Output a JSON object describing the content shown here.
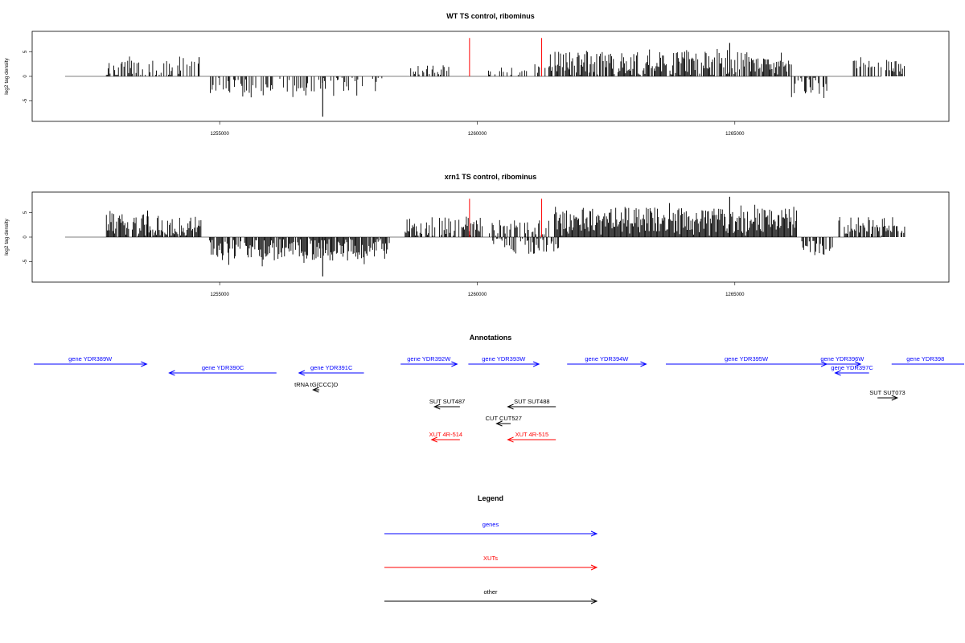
{
  "chart_data": [
    {
      "type": "bar",
      "title": "WT TS control, ribominus",
      "xlabel": "",
      "ylabel": "log2 tag density",
      "xlim": [
        1252000,
        1268500
      ],
      "ylim": [
        -8.5,
        8.5
      ],
      "yticks": [
        -5,
        0,
        5
      ],
      "xticks": [
        1255000,
        1260000,
        1265000
      ],
      "xtick_labels": [
        "1255000",
        "1260000",
        "1265000"
      ],
      "grid": false,
      "highlight_color": "#ff0000",
      "highlights": [
        {
          "x": 1259850,
          "y": 7.8
        },
        {
          "x": 1261250,
          "y": 7.8
        }
      ],
      "bar_color": "#000000",
      "regions": [
        {
          "start": 1252800,
          "end": 1254650,
          "sign": 1,
          "mean": 1.6,
          "spread": 1.8,
          "density": 0.55
        },
        {
          "start": 1254800,
          "end": 1257500,
          "sign": -1,
          "mean": 1.8,
          "spread": 1.6,
          "density": 0.45
        },
        {
          "start": 1257500,
          "end": 1258200,
          "sign": -1,
          "mean": 1.6,
          "spread": 1.5,
          "density": 0.35
        },
        {
          "start": 1258600,
          "end": 1259500,
          "sign": 1,
          "mean": 1.3,
          "spread": 1.0,
          "density": 0.35
        },
        {
          "start": 1260200,
          "end": 1261400,
          "sign": 1,
          "mean": 1.4,
          "spread": 1.4,
          "density": 0.25
        },
        {
          "start": 1261400,
          "end": 1266100,
          "sign": 1,
          "mean": 2.6,
          "spread": 2.4,
          "density": 0.8
        },
        {
          "start": 1266100,
          "end": 1266800,
          "sign": -1,
          "mean": 1.8,
          "spread": 1.8,
          "density": 0.6
        },
        {
          "start": 1267300,
          "end": 1268300,
          "sign": 1,
          "mean": 1.8,
          "spread": 1.6,
          "density": 0.6
        }
      ],
      "peaks": [
        {
          "x": 1257000,
          "y": -8.2
        },
        {
          "x": 1264900,
          "y": 6.8
        },
        {
          "x": 1254600,
          "y": 3.9
        }
      ]
    },
    {
      "type": "bar",
      "title": "xrn1 TS control, ribominus",
      "xlabel": "",
      "ylabel": "log2 tag density",
      "xlim": [
        1252000,
        1268500
      ],
      "ylim": [
        -8.5,
        8.5
      ],
      "yticks": [
        -5,
        0,
        5
      ],
      "xticks": [
        1255000,
        1260000,
        1265000
      ],
      "xtick_labels": [
        "1255000",
        "1260000",
        "1265000"
      ],
      "grid": false,
      "highlight_color": "#ff0000",
      "highlights": [
        {
          "x": 1259850,
          "y": 7.8
        },
        {
          "x": 1261250,
          "y": 7.8
        }
      ],
      "bar_color": "#000000",
      "regions": [
        {
          "start": 1252800,
          "end": 1254650,
          "sign": 1,
          "mean": 2.5,
          "spread": 2.2,
          "density": 0.9
        },
        {
          "start": 1254800,
          "end": 1258300,
          "sign": -1,
          "mean": 2.6,
          "spread": 2.2,
          "density": 0.85
        },
        {
          "start": 1258600,
          "end": 1260100,
          "sign": 1,
          "mean": 2.2,
          "spread": 2.0,
          "density": 0.7
        },
        {
          "start": 1260300,
          "end": 1261600,
          "sign": -1,
          "mean": 1.6,
          "spread": 1.8,
          "density": 0.55
        },
        {
          "start": 1260200,
          "end": 1261400,
          "sign": 1,
          "mean": 1.8,
          "spread": 1.6,
          "density": 0.5
        },
        {
          "start": 1261500,
          "end": 1266200,
          "sign": 1,
          "mean": 3.4,
          "spread": 2.6,
          "density": 1.0
        },
        {
          "start": 1266300,
          "end": 1266900,
          "sign": -1,
          "mean": 2.3,
          "spread": 1.6,
          "density": 0.8
        },
        {
          "start": 1267000,
          "end": 1268300,
          "sign": 1,
          "mean": 2.4,
          "spread": 1.8,
          "density": 0.8
        }
      ],
      "peaks": [
        {
          "x": 1257000,
          "y": -8.0
        },
        {
          "x": 1264900,
          "y": 8.2
        },
        {
          "x": 1253600,
          "y": 5.4
        }
      ]
    }
  ],
  "annotations": {
    "title": "Annotations",
    "xlim": [
      1252000,
      1268500
    ],
    "features": [
      {
        "label": "gene YDR389W",
        "color": "#0000ff",
        "start": 1252000,
        "end": 1254000,
        "dir": 1,
        "row": 0
      },
      {
        "label": "gene YDR390C",
        "color": "#0000ff",
        "start": 1254400,
        "end": 1256300,
        "dir": -1,
        "row": 1
      },
      {
        "label": "gene YDR391C",
        "color": "#0000ff",
        "start": 1256700,
        "end": 1257850,
        "dir": -1,
        "row": 1
      },
      {
        "label": "tRNA tG(CCC)D",
        "color": "#000000",
        "start": 1256950,
        "end": 1257060,
        "dir": -1,
        "row": 2
      },
      {
        "label": "gene YDR392W",
        "color": "#0000ff",
        "start": 1258500,
        "end": 1259500,
        "dir": 1,
        "row": 0
      },
      {
        "label": "gene YDR393W",
        "color": "#0000ff",
        "start": 1259700,
        "end": 1260950,
        "dir": 1,
        "row": 0
      },
      {
        "label": "gene YDR394W",
        "color": "#0000ff",
        "start": 1261450,
        "end": 1262850,
        "dir": 1,
        "row": 0
      },
      {
        "label": "gene YDR395W",
        "color": "#0000ff",
        "start": 1263200,
        "end": 1266050,
        "dir": 1,
        "row": 0
      },
      {
        "label": "gene YDR396W",
        "color": "#0000ff",
        "start": 1266000,
        "end": 1266650,
        "dir": 1,
        "row": 0
      },
      {
        "label": "gene YDR397C",
        "color": "#0000ff",
        "start": 1266200,
        "end": 1266800,
        "dir": -1,
        "row": 1
      },
      {
        "label": "gene YDR398",
        "color": "#0000ff",
        "start": 1267200,
        "end": 1268500,
        "dir": 1,
        "row": 0,
        "clip": true
      },
      {
        "label": "SUT SUT487",
        "color": "#000000",
        "start": 1259100,
        "end": 1259550,
        "dir": -1,
        "row": 4
      },
      {
        "label": "SUT SUT488",
        "color": "#000000",
        "start": 1260400,
        "end": 1261250,
        "dir": -1,
        "row": 4
      },
      {
        "label": "CUT CUT527",
        "color": "#000000",
        "start": 1260200,
        "end": 1260450,
        "dir": -1,
        "row": 5
      },
      {
        "label": "SUT SUT073",
        "color": "#000000",
        "start": 1266950,
        "end": 1267300,
        "dir": 1,
        "row": 3
      },
      {
        "label": "XUT 4R-514",
        "color": "#ff0000",
        "start": 1259050,
        "end": 1259550,
        "dir": -1,
        "row": 6
      },
      {
        "label": "XUT 4R-515",
        "color": "#ff0000",
        "start": 1260400,
        "end": 1261250,
        "dir": -1,
        "row": 6
      }
    ]
  },
  "legend": {
    "title": "Legend",
    "items": [
      {
        "label": "genes",
        "color": "#0000ff"
      },
      {
        "label": "XUTs",
        "color": "#ff0000"
      },
      {
        "label": "other",
        "color": "#000000"
      }
    ]
  }
}
